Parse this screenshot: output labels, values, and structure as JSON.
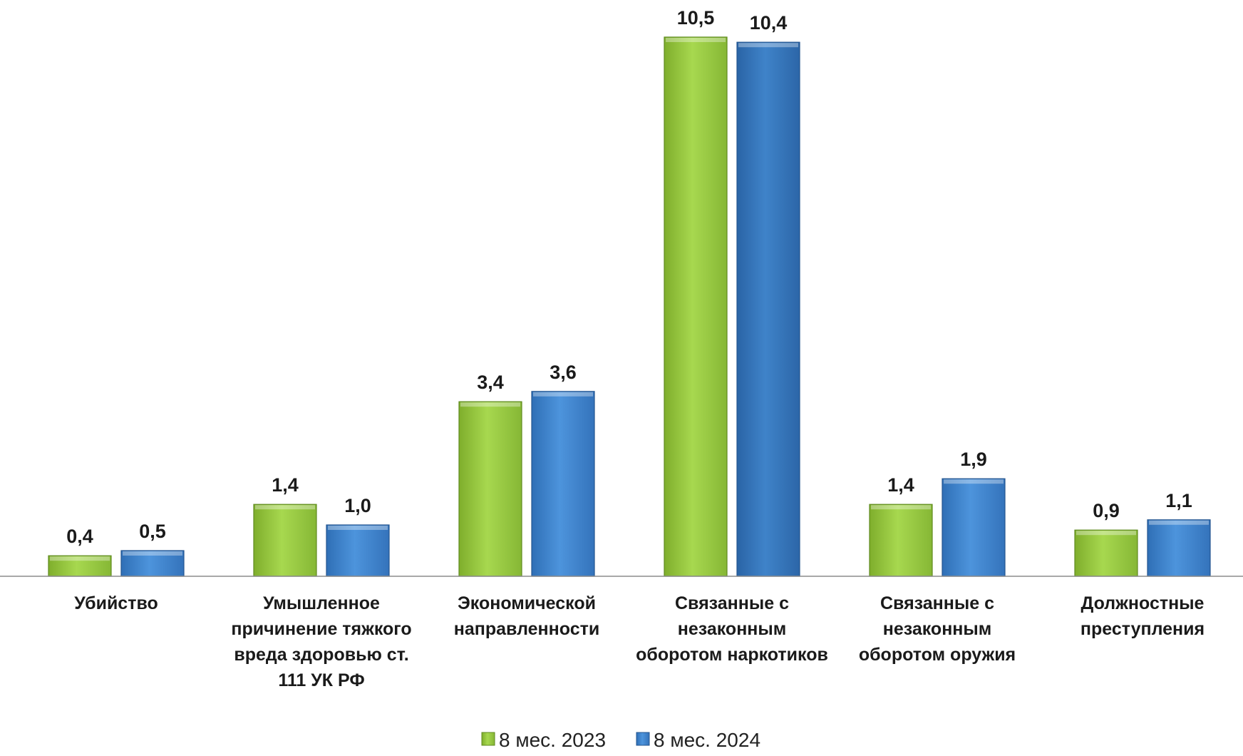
{
  "chart_data": {
    "type": "bar",
    "categories": [
      "Убийство",
      "Умышленное причинение тяжкого вреда здоровью ст. 111 УК РФ",
      "Экономической направленности",
      "Связанные с незаконным оборотом наркотиков",
      "Связанные с незаконным оборотом оружия",
      "Должностные преступления"
    ],
    "category_lines": [
      [
        "Убийство"
      ],
      [
        "Умышленное",
        "причинение тяжкого",
        "вреда здоровью ст.",
        "111 УК РФ"
      ],
      [
        "Экономической",
        "направленности"
      ],
      [
        "Связанные с",
        "незаконным",
        "оборотом наркотиков"
      ],
      [
        "Связанные с",
        "незаконным",
        "оборотом оружия"
      ],
      [
        "Должностные",
        "преступления"
      ]
    ],
    "series": [
      {
        "name": "8 мес. 2023",
        "values": [
          0.4,
          1.4,
          3.4,
          10.5,
          1.4,
          0.9
        ],
        "labels": [
          "0,4",
          "1,4",
          "3,4",
          "10,5",
          "1,4",
          "0,9"
        ],
        "color": "#92c83e"
      },
      {
        "name": "8 мес. 2024",
        "values": [
          0.5,
          1.0,
          3.6,
          10.4,
          1.9,
          1.1
        ],
        "labels": [
          "0,5",
          "1,0",
          "3,6",
          "10,4",
          "1,9",
          "1,1"
        ],
        "color": "#3e86d1"
      }
    ],
    "title": "",
    "xlabel": "",
    "ylabel": "",
    "ylim": [
      0,
      10.5
    ],
    "grid": false,
    "legend_position": "bottom"
  }
}
